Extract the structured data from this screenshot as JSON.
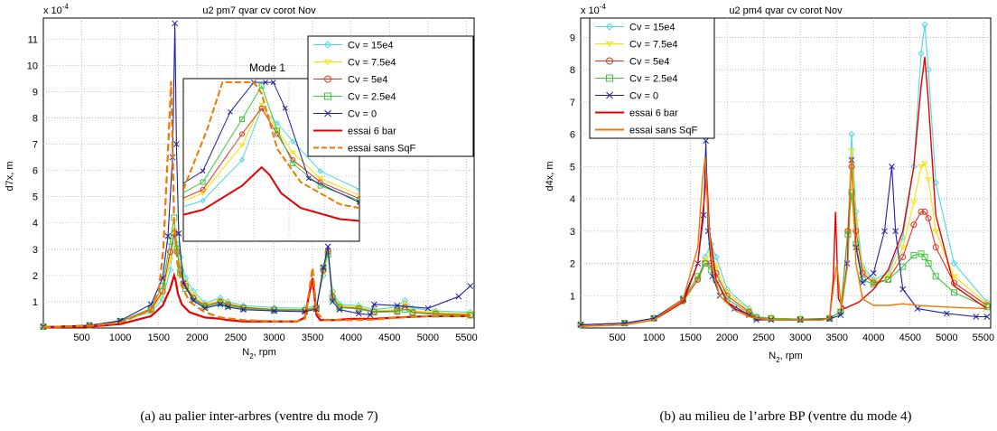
{
  "chart_data": [
    {
      "type": "line",
      "title": "u2 pm7 qvar cv corot Nov",
      "xlabel": "N",
      "xlabel_sub": "2",
      "xlabel_suffix": ", rpm",
      "ylabel": "d7x, m",
      "y_exponent_label": "x 10",
      "y_exponent": "-4",
      "xlim": [
        0,
        5600
      ],
      "ylim": [
        0,
        11.8
      ],
      "xticks": [
        500,
        1000,
        1500,
        2000,
        2500,
        3000,
        3500,
        4000,
        4500,
        5000,
        5500
      ],
      "yticks": [
        1,
        2,
        3,
        4,
        5,
        6,
        7,
        8,
        9,
        10,
        11
      ],
      "grid": true,
      "legend_position": "top-right",
      "inset_label": "Mode 1",
      "caption": "(a) au palier inter-arbres (ventre du mode 7)",
      "series": [
        {
          "name": "Cv = 15e4",
          "color": "#4fd8e0",
          "marker": "diamond",
          "x": [
            0,
            600,
            1000,
            1400,
            1550,
            1650,
            1700,
            1740,
            1780,
            1850,
            1950,
            2100,
            2300,
            2400,
            2600,
            3000,
            3400,
            3550,
            3640,
            3700,
            3760,
            3850,
            4100,
            4300,
            4600,
            4700,
            4800,
            5100,
            5550
          ],
          "y": [
            0.05,
            0.1,
            0.25,
            0.6,
            1.1,
            2.2,
            3.6,
            3.2,
            2.7,
            1.9,
            1.4,
            0.95,
            1.15,
            1.0,
            0.85,
            0.78,
            0.75,
            0.85,
            2.0,
            2.9,
            1.4,
            0.9,
            0.85,
            0.7,
            0.8,
            1.05,
            0.75,
            0.65,
            0.6
          ]
        },
        {
          "name": "Cv = 7.5e4",
          "color": "#f2e400",
          "marker": "triangle",
          "x": [
            0,
            600,
            1000,
            1400,
            1550,
            1650,
            1700,
            1740,
            1780,
            1850,
            1950,
            2100,
            2300,
            2400,
            2600,
            3000,
            3400,
            3550,
            3640,
            3700,
            3760,
            3850,
            4100,
            4300,
            4600,
            4700,
            4800,
            5100,
            5550
          ],
          "y": [
            0.05,
            0.1,
            0.25,
            0.65,
            1.3,
            2.6,
            3.7,
            3.0,
            2.4,
            1.7,
            1.25,
            0.9,
            1.05,
            0.95,
            0.8,
            0.72,
            0.7,
            0.8,
            2.1,
            2.9,
            1.3,
            0.85,
            0.8,
            0.65,
            0.7,
            0.9,
            0.65,
            0.6,
            0.55
          ]
        },
        {
          "name": "Cv = 5e4",
          "color": "#e8301c",
          "marker": "circle",
          "x": [
            0,
            600,
            1000,
            1400,
            1550,
            1650,
            1700,
            1740,
            1780,
            1850,
            1950,
            2100,
            2300,
            2400,
            2600,
            3000,
            3400,
            3550,
            3640,
            3700,
            3760,
            3850,
            4100,
            4300,
            4600,
            4700,
            4800,
            5100,
            5550
          ],
          "y": [
            0.05,
            0.1,
            0.25,
            0.7,
            1.4,
            2.9,
            3.6,
            2.9,
            2.2,
            1.6,
            1.15,
            0.85,
            1.0,
            0.9,
            0.78,
            0.7,
            0.68,
            0.78,
            2.2,
            2.9,
            1.2,
            0.8,
            0.75,
            0.62,
            0.65,
            0.8,
            0.6,
            0.55,
            0.5
          ]
        },
        {
          "name": "Cv = 2.5e4",
          "color": "#3cc83c",
          "marker": "square",
          "x": [
            0,
            600,
            1000,
            1400,
            1550,
            1650,
            1700,
            1740,
            1780,
            1850,
            1950,
            2100,
            2300,
            2400,
            2600,
            3000,
            3400,
            3550,
            3640,
            3700,
            3760,
            3850,
            4100,
            4300,
            4600,
            4700,
            4800,
            5100,
            5550
          ],
          "y": [
            0.05,
            0.1,
            0.25,
            0.75,
            1.6,
            3.3,
            4.2,
            3.0,
            2.1,
            1.5,
            1.1,
            0.8,
            0.95,
            0.85,
            0.75,
            0.68,
            0.66,
            0.75,
            2.3,
            2.8,
            1.1,
            0.78,
            0.72,
            0.6,
            0.62,
            0.7,
            0.58,
            0.52,
            0.48
          ]
        },
        {
          "name": "Cv = 0",
          "color": "#2020a0",
          "marker": "x",
          "x": [
            0,
            600,
            1000,
            1400,
            1550,
            1620,
            1680,
            1710,
            1730,
            1760,
            1820,
            1950,
            2100,
            2300,
            2400,
            2600,
            3000,
            3400,
            3550,
            3640,
            3700,
            3760,
            3850,
            4100,
            4250,
            4300,
            4600,
            5000,
            5400,
            5550
          ],
          "y": [
            0.05,
            0.1,
            0.28,
            0.9,
            1.9,
            3.5,
            6.5,
            11.6,
            7.0,
            3.6,
            1.7,
            1.05,
            0.75,
            0.9,
            0.8,
            0.7,
            0.65,
            0.62,
            0.72,
            2.3,
            3.1,
            1.0,
            0.7,
            0.55,
            0.5,
            0.9,
            0.85,
            0.75,
            1.2,
            1.6
          ]
        },
        {
          "name": "essai 6 bar",
          "color": "#e80000",
          "marker": "none",
          "x": [
            0,
            600,
            1000,
            1400,
            1550,
            1650,
            1700,
            1720,
            1750,
            1800,
            1900,
            2100,
            2300,
            2400,
            2600,
            3000,
            3300,
            3400,
            3450,
            3500,
            3550,
            3600,
            3700,
            3800,
            4000,
            4300,
            4600,
            5000,
            5550
          ],
          "y": [
            0.02,
            0.05,
            0.15,
            0.45,
            0.85,
            1.5,
            2.0,
            1.8,
            1.3,
            0.9,
            0.6,
            0.4,
            0.35,
            0.3,
            0.25,
            0.25,
            0.25,
            0.4,
            1.2,
            1.9,
            0.5,
            0.3,
            0.3,
            0.3,
            0.35,
            0.35,
            0.4,
            0.45,
            0.45
          ]
        },
        {
          "name": "essai sans SqF",
          "color": "#f07800",
          "marker": "none",
          "dash": true,
          "x": [
            0,
            600,
            1000,
            1400,
            1500,
            1560,
            1600,
            1640,
            1660,
            1680,
            1700,
            1740,
            1800,
            1900,
            2100,
            2300,
            2600,
            3000,
            3300,
            3400,
            3450,
            3500,
            3550,
            3650,
            4000,
            4300,
            4600,
            5000,
            5550
          ],
          "y": [
            0.03,
            0.08,
            0.2,
            0.7,
            1.4,
            3.0,
            5.5,
            8.0,
            9.4,
            7.0,
            4.0,
            2.5,
            1.6,
            1.0,
            0.6,
            0.4,
            0.3,
            0.25,
            0.25,
            0.35,
            1.3,
            2.3,
            0.6,
            0.3,
            0.3,
            0.32,
            0.4,
            0.45,
            0.45
          ]
        }
      ]
    },
    {
      "type": "line",
      "title": "u2 pm4 qvar cv corot Nov",
      "xlabel": "N",
      "xlabel_sub": "2",
      "xlabel_suffix": ", rpm",
      "ylabel": "d4x, m",
      "y_exponent_label": "x 10",
      "y_exponent": "-4",
      "xlim": [
        0,
        5600
      ],
      "ylim": [
        0,
        9.6
      ],
      "xticks": [
        500,
        1000,
        1500,
        2000,
        2500,
        3000,
        3500,
        4000,
        4500,
        5000,
        5500
      ],
      "yticks": [
        1,
        2,
        3,
        4,
        5,
        6,
        7,
        8,
        9
      ],
      "grid": true,
      "legend_position": "top-left",
      "caption": "(b) au milieu de l’arbre BP (ventre du mode 4)",
      "series": [
        {
          "name": "Cv = 15e4",
          "color": "#4fd8e0",
          "marker": "diamond",
          "x": [
            0,
            600,
            1000,
            1400,
            1600,
            1700,
            1780,
            1850,
            2000,
            2300,
            2400,
            2600,
            3000,
            3400,
            3550,
            3650,
            3700,
            3760,
            3850,
            4000,
            4200,
            4400,
            4550,
            4650,
            4700,
            4750,
            4850,
            5100,
            5550
          ],
          "y": [
            0.1,
            0.15,
            0.3,
            0.8,
            1.5,
            2.2,
            2.6,
            2.2,
            1.2,
            0.6,
            0.35,
            0.3,
            0.28,
            0.3,
            0.5,
            3.0,
            6.0,
            3.6,
            1.9,
            1.5,
            1.7,
            2.8,
            5.0,
            8.5,
            9.4,
            8.0,
            4.5,
            2.0,
            0.8
          ]
        },
        {
          "name": "Cv = 7.5e4",
          "color": "#f2e400",
          "marker": "triangle",
          "x": [
            0,
            600,
            1000,
            1400,
            1600,
            1700,
            1780,
            1850,
            2000,
            2300,
            2400,
            2600,
            3000,
            3400,
            3550,
            3650,
            3700,
            3760,
            3850,
            4000,
            4200,
            4400,
            4550,
            4650,
            4700,
            4750,
            4850,
            5100,
            5550
          ],
          "y": [
            0.1,
            0.15,
            0.3,
            0.8,
            1.5,
            2.1,
            2.3,
            1.9,
            1.1,
            0.55,
            0.33,
            0.3,
            0.27,
            0.3,
            0.5,
            3.0,
            5.5,
            3.3,
            1.8,
            1.45,
            1.6,
            2.5,
            3.9,
            5.0,
            5.1,
            4.6,
            3.0,
            1.6,
            0.75
          ]
        },
        {
          "name": "Cv = 5e4",
          "color": "#e8301c",
          "marker": "circle",
          "x": [
            0,
            600,
            1000,
            1400,
            1600,
            1700,
            1780,
            1850,
            2000,
            2300,
            2400,
            2600,
            3000,
            3400,
            3550,
            3650,
            3700,
            3760,
            3850,
            4000,
            4200,
            4400,
            4550,
            4650,
            4700,
            4750,
            4850,
            5100,
            5550
          ],
          "y": [
            0.1,
            0.15,
            0.3,
            0.85,
            1.5,
            2.0,
            2.0,
            1.7,
            1.0,
            0.5,
            0.33,
            0.3,
            0.27,
            0.3,
            0.5,
            3.0,
            5.0,
            3.0,
            1.7,
            1.4,
            1.5,
            2.2,
            3.2,
            3.6,
            3.6,
            3.4,
            2.5,
            1.4,
            0.7
          ]
        },
        {
          "name": "Cv = 2.5e4",
          "color": "#3cc83c",
          "marker": "square",
          "x": [
            0,
            600,
            1000,
            1400,
            1600,
            1700,
            1780,
            1850,
            2000,
            2300,
            2400,
            2600,
            3000,
            3400,
            3550,
            3650,
            3700,
            3760,
            3850,
            4000,
            4200,
            4400,
            4550,
            4650,
            4700,
            4750,
            4850,
            5100,
            5550
          ],
          "y": [
            0.1,
            0.15,
            0.3,
            0.9,
            1.6,
            2.0,
            1.8,
            1.5,
            0.9,
            0.45,
            0.32,
            0.3,
            0.27,
            0.3,
            0.5,
            2.9,
            4.2,
            2.6,
            1.5,
            1.35,
            1.5,
            1.9,
            2.25,
            2.3,
            2.2,
            2.0,
            1.6,
            1.1,
            0.65
          ]
        },
        {
          "name": "Cv = 0",
          "color": "#2020a0",
          "marker": "x",
          "x": [
            0,
            600,
            1000,
            1400,
            1600,
            1680,
            1710,
            1740,
            1800,
            1900,
            2100,
            2300,
            2400,
            2600,
            3000,
            3400,
            3550,
            3640,
            3700,
            3760,
            3850,
            4000,
            4150,
            4250,
            4300,
            4400,
            4600,
            5000,
            5400,
            5550
          ],
          "y": [
            0.1,
            0.15,
            0.3,
            0.9,
            2.0,
            3.5,
            5.8,
            3.0,
            1.6,
            1.0,
            0.6,
            0.4,
            0.25,
            0.25,
            0.25,
            0.28,
            0.4,
            2.0,
            5.2,
            2.5,
            1.4,
            1.7,
            3.0,
            5.0,
            3.0,
            1.2,
            0.6,
            0.45,
            0.35,
            0.35
          ]
        },
        {
          "name": "essai 6 bar",
          "color": "#e80000",
          "marker": "none",
          "x": [
            0,
            600,
            1000,
            1400,
            1600,
            1680,
            1720,
            1760,
            1850,
            2000,
            2300,
            2400,
            2600,
            3000,
            3300,
            3400,
            3450,
            3480,
            3520,
            3600,
            3800,
            4000,
            4200,
            4400,
            4550,
            4650,
            4700,
            4750,
            4850,
            5100,
            5550
          ],
          "y": [
            0.05,
            0.1,
            0.25,
            0.8,
            2.0,
            3.8,
            4.8,
            3.0,
            1.5,
            0.8,
            0.4,
            0.3,
            0.25,
            0.25,
            0.25,
            0.3,
            1.5,
            3.6,
            0.9,
            0.6,
            0.8,
            1.2,
            1.8,
            3.0,
            5.0,
            7.5,
            8.4,
            7.0,
            3.5,
            1.3,
            0.6
          ]
        },
        {
          "name": "essai sans SqF",
          "color": "#f07800",
          "marker": "none",
          "x": [
            0,
            600,
            1000,
            1400,
            1600,
            1660,
            1700,
            1740,
            1800,
            1900,
            2100,
            2300,
            2400,
            2600,
            3000,
            3300,
            3400,
            3460,
            3500,
            3560,
            3650,
            3700,
            3760,
            3850,
            4000,
            4200,
            4400,
            4600,
            5000,
            5550
          ],
          "y": [
            0.05,
            0.1,
            0.25,
            0.9,
            2.5,
            4.5,
            5.3,
            3.5,
            1.8,
            1.0,
            0.55,
            0.35,
            0.3,
            0.25,
            0.25,
            0.25,
            0.3,
            1.4,
            2.0,
            0.6,
            2.0,
            5.3,
            2.0,
            0.9,
            0.7,
            0.7,
            0.75,
            0.7,
            0.65,
            0.6
          ]
        }
      ]
    }
  ]
}
